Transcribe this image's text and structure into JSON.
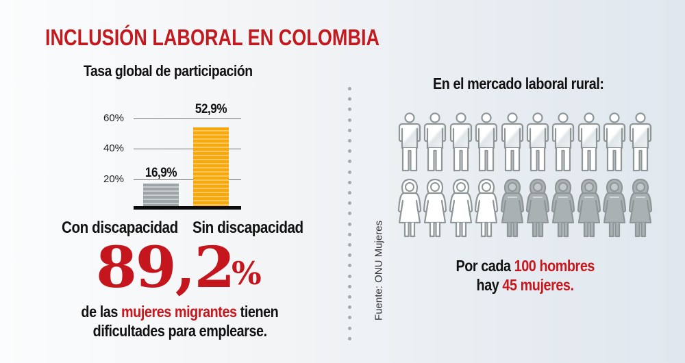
{
  "title": "INCLUSIÓN LABORAL EN COLOMBIA",
  "participation": {
    "title": "Tasa  global de participación",
    "y_ticks": [
      "60%",
      "40%",
      "20%"
    ],
    "bars": [
      {
        "label": "Con discapacidad",
        "value_label": "16,9%",
        "color": "#9ea5a8"
      },
      {
        "label": "Sin discapacidad",
        "value_label": "52,9%",
        "color": "#f6a90f"
      }
    ]
  },
  "chart_data": {
    "type": "bar",
    "title": "Tasa global de participación",
    "categories": [
      "Con discapacidad",
      "Sin discapacidad"
    ],
    "values": [
      16.9,
      52.9
    ],
    "data_labels": [
      "16,9%",
      "52,9%"
    ],
    "xlabel": "",
    "ylabel": "",
    "yticks": [
      "20%",
      "40%",
      "60%"
    ],
    "ylim": [
      0,
      60
    ],
    "grid": true,
    "colors": [
      "#9ea5a8",
      "#f6a90f"
    ]
  },
  "migrants": {
    "number": "89,2",
    "percent_sign": "%",
    "line1_pre": "de las ",
    "line1_highlight": "mujeres migrantes",
    "line1_post": " tienen",
    "line2": "dificultades para emplearse."
  },
  "source": "Fuente: ONU Mujeres",
  "rural": {
    "title": "En el mercado laboral rural:",
    "men_count": 10,
    "women_highlighted": 4,
    "women_count": 10,
    "caption_line1_pre": "Por cada ",
    "caption_line1_highlight": "100 hombres",
    "caption_line2_pre": "hay ",
    "caption_line2_highlight": "45 mujeres."
  },
  "colors": {
    "accent_red": "#c4161c",
    "bar_gray": "#9ea5a8",
    "bar_orange": "#f6a90f",
    "figure_stroke": "#8e9698",
    "figure_gray_fill": "#a9b1b3"
  }
}
